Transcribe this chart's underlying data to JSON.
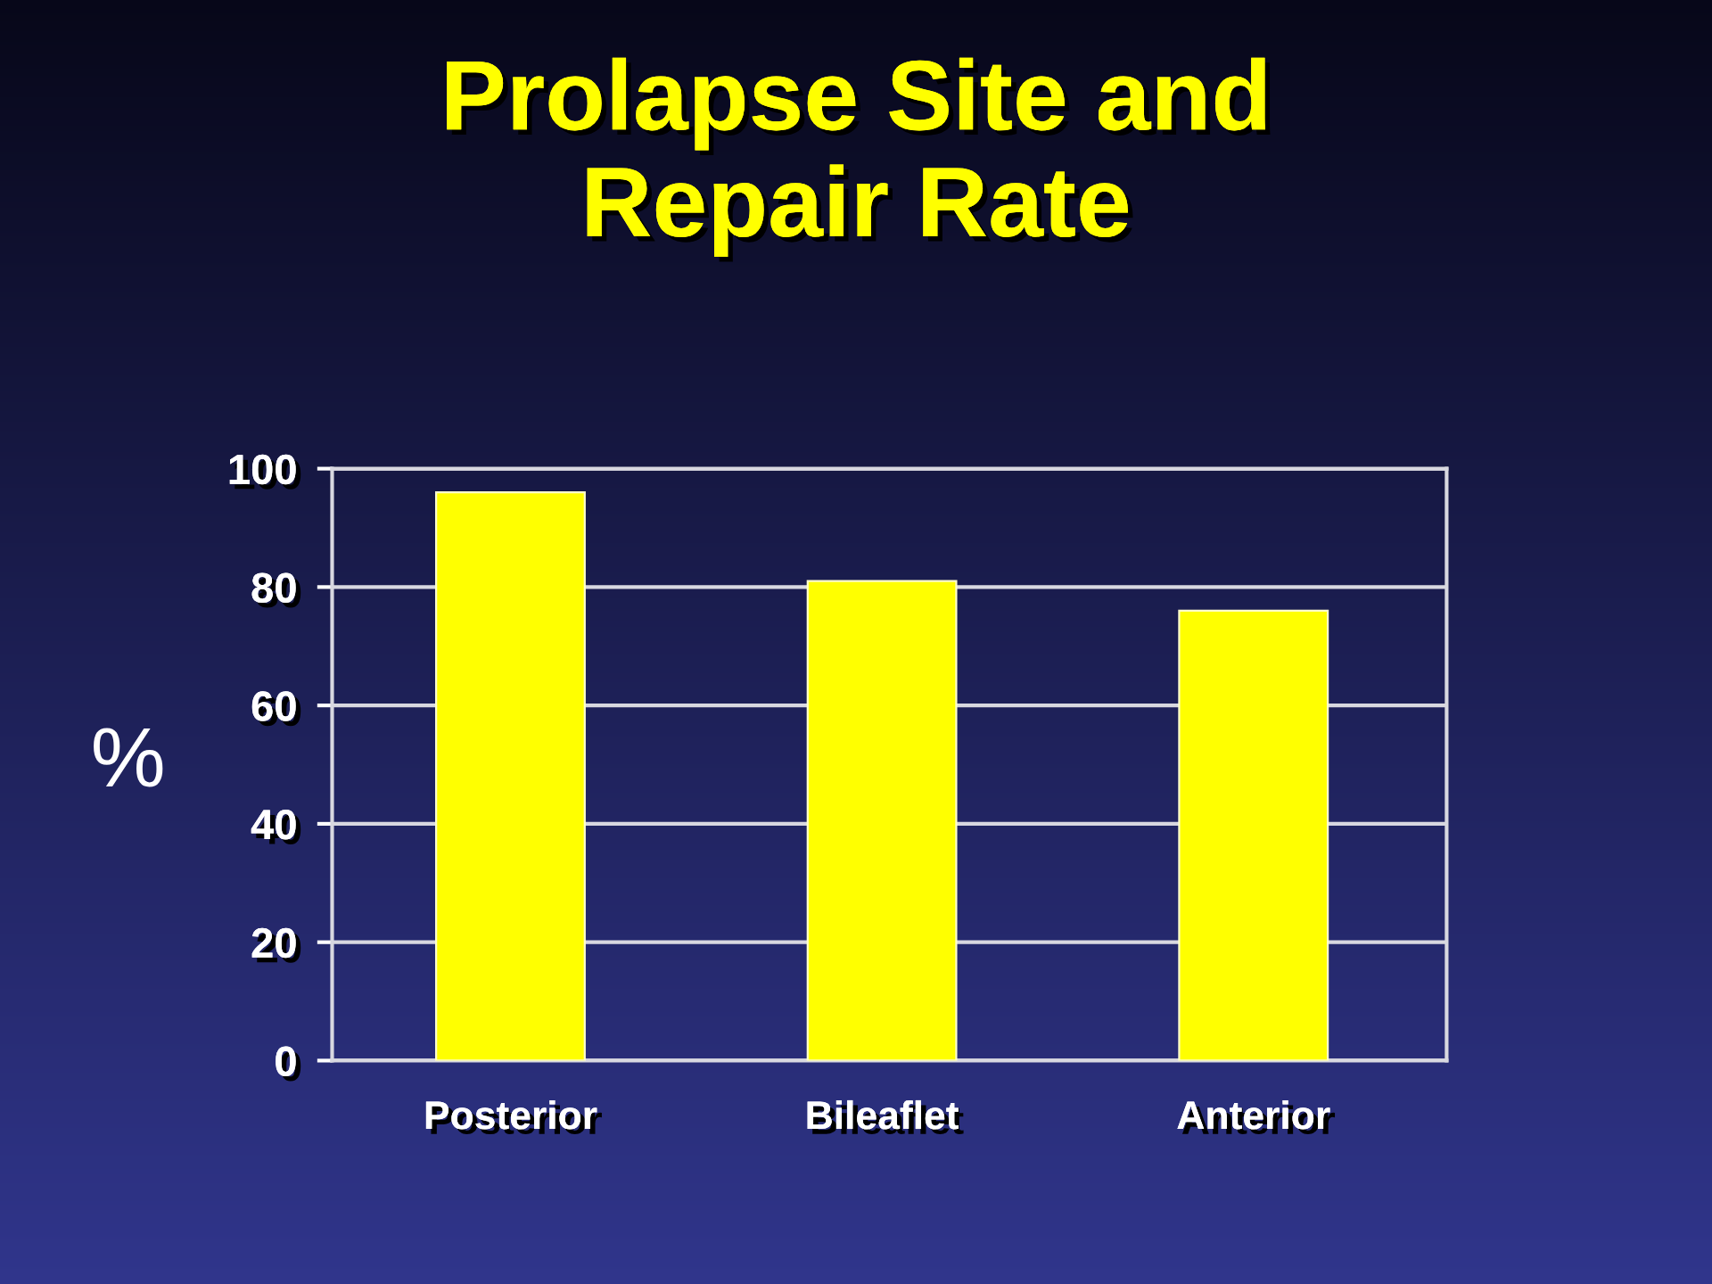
{
  "chart_data": {
    "type": "bar",
    "title": "Prolapse Site and\nRepair Rate",
    "ylabel": "%",
    "categories": [
      "Posterior",
      "Bileaflet",
      "Anterior"
    ],
    "values": [
      96,
      81,
      76
    ],
    "color": "#ffff00",
    "ylim": [
      0,
      100
    ],
    "yticks": [
      0,
      20,
      40,
      60,
      80,
      100
    ],
    "grid": "y"
  }
}
